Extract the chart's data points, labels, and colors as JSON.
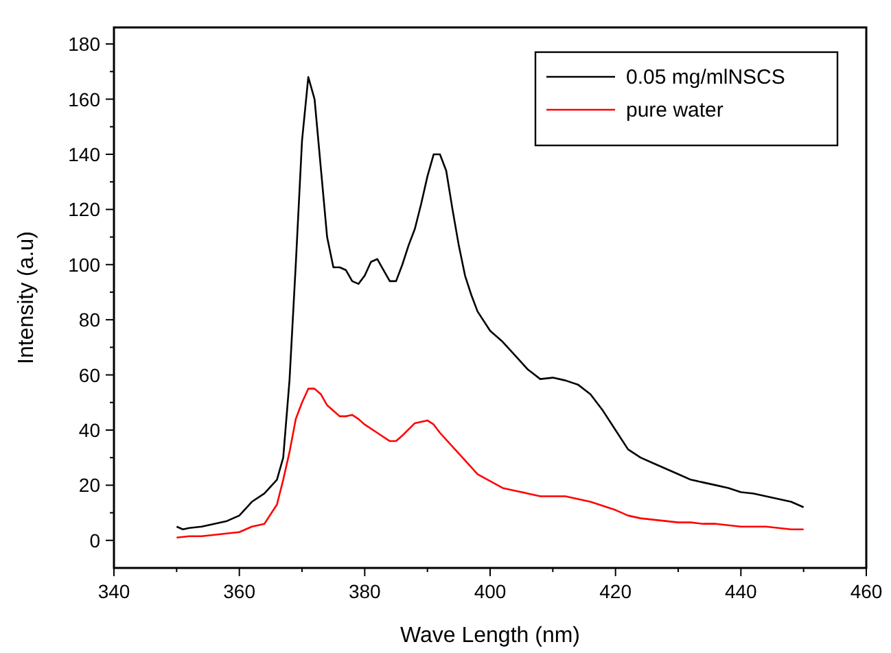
{
  "chart_data": {
    "type": "line",
    "xlabel": "Wave Length (nm)",
    "ylabel": "Intensity (a.u)",
    "xlim": [
      340,
      460
    ],
    "xticks": [
      340,
      360,
      380,
      400,
      420,
      440,
      460
    ],
    "ylim": [
      -10,
      186
    ],
    "yticks": [
      0,
      20,
      40,
      60,
      80,
      100,
      120,
      140,
      160,
      180
    ],
    "legend": "top right",
    "grid": false,
    "marker": "none",
    "line_style": "solid",
    "series": [
      {
        "name": "0.05 mg/mlNSCS",
        "color": "#000000",
        "x": [
          350,
          351,
          352,
          354,
          356,
          358,
          360,
          362,
          364,
          366,
          367,
          368,
          369,
          370,
          371,
          372,
          373,
          374,
          375,
          376,
          377,
          378,
          379,
          380,
          381,
          382,
          383,
          384,
          385,
          386,
          387,
          388,
          389,
          390,
          391,
          392,
          393,
          394,
          395,
          396,
          397,
          398,
          400,
          402,
          404,
          406,
          408,
          410,
          412,
          414,
          416,
          418,
          420,
          422,
          424,
          426,
          428,
          430,
          432,
          434,
          436,
          438,
          440,
          442,
          444,
          446,
          448,
          450
        ],
        "values": [
          5,
          4,
          4.5,
          5,
          6,
          7,
          9,
          14,
          17,
          22,
          30,
          58,
          100,
          145,
          168,
          160,
          135,
          110,
          99,
          99,
          98,
          94,
          93,
          96,
          101,
          102,
          98,
          94,
          94,
          100,
          107,
          113,
          122,
          132,
          140,
          140,
          134,
          120,
          107,
          96,
          89,
          83,
          76,
          72,
          67,
          62,
          58.5,
          59,
          58,
          56.5,
          53,
          47,
          40,
          33,
          30,
          28,
          26,
          24,
          22,
          21,
          20,
          19,
          17.5,
          17,
          16,
          15,
          14,
          12
        ]
      },
      {
        "name": "pure water",
        "color": "#ff0000",
        "x": [
          350,
          352,
          354,
          356,
          358,
          360,
          362,
          364,
          366,
          367,
          368,
          369,
          370,
          371,
          372,
          373,
          374,
          375,
          376,
          377,
          378,
          379,
          380,
          382,
          384,
          385,
          386,
          388,
          390,
          391,
          392,
          394,
          396,
          398,
          400,
          402,
          404,
          406,
          408,
          410,
          412,
          414,
          416,
          418,
          420,
          422,
          424,
          426,
          428,
          430,
          432,
          434,
          436,
          438,
          440,
          444,
          446,
          448,
          450
        ],
        "values": [
          1,
          1.5,
          1.5,
          2,
          2.5,
          3,
          5,
          6,
          13,
          22,
          32,
          44,
          50,
          55,
          55,
          53,
          49,
          47,
          45,
          45,
          45.5,
          44,
          42,
          39,
          36,
          36,
          38,
          42.5,
          43.5,
          42,
          39,
          34,
          29,
          24,
          21.5,
          19,
          18,
          17,
          16,
          16,
          16,
          15,
          14,
          12.5,
          11,
          9,
          8,
          7.5,
          7,
          6.5,
          6.5,
          6,
          6,
          5.5,
          5,
          5,
          4.5,
          4,
          4
        ]
      }
    ]
  }
}
